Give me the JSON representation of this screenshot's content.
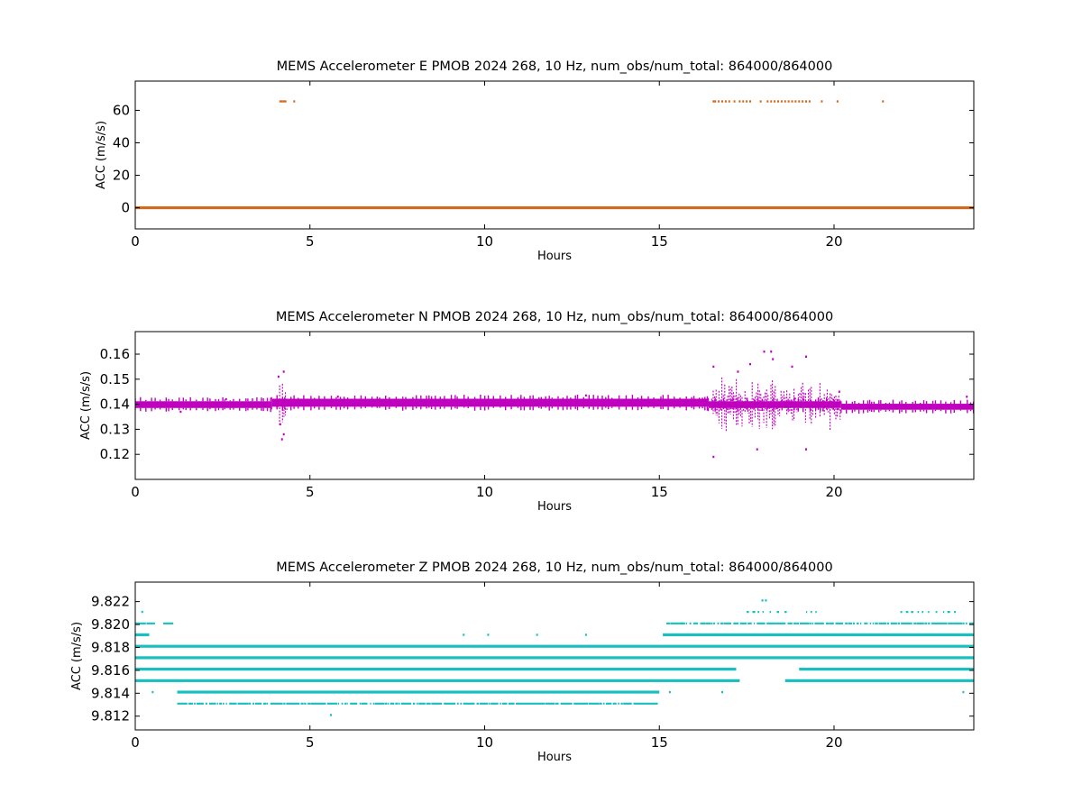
{
  "chart_data": [
    {
      "type": "scatter",
      "title": "MEMS Accelerometer E PMOB 2024 268, 10 Hz, num_obs/num_total: 864000/864000",
      "xlabel": "Hours",
      "ylabel": "ACC (m/s/s)",
      "xlim": [
        0,
        24
      ],
      "ylim": [
        -13,
        78
      ],
      "xticks": [
        0,
        5,
        10,
        15,
        20
      ],
      "yticks": [
        0,
        20,
        40,
        60
      ],
      "tick_decimals": 0,
      "color": "#d2691e",
      "grid": false,
      "series": [
        {
          "bands": [
            {
              "y": 0,
              "x_ranges": [
                [
                  0,
                  24
                ]
              ],
              "style": "solid"
            }
          ],
          "points": [
            {
              "x": 4.15,
              "y": 65.5
            },
            {
              "x": 4.2,
              "y": 65.5
            },
            {
              "x": 4.25,
              "y": 65.5
            },
            {
              "x": 4.3,
              "y": 65.5
            },
            {
              "x": 4.55,
              "y": 65.5
            },
            {
              "x": 16.55,
              "y": 65.5
            },
            {
              "x": 16.6,
              "y": 65.5
            },
            {
              "x": 16.7,
              "y": 65.5
            },
            {
              "x": 16.8,
              "y": 65.5
            },
            {
              "x": 16.9,
              "y": 65.5
            },
            {
              "x": 17.0,
              "y": 65.5
            },
            {
              "x": 17.15,
              "y": 65.5
            },
            {
              "x": 17.3,
              "y": 65.5
            },
            {
              "x": 17.4,
              "y": 65.5
            },
            {
              "x": 17.5,
              "y": 65.5
            },
            {
              "x": 17.6,
              "y": 65.5
            },
            {
              "x": 17.9,
              "y": 65.5
            },
            {
              "x": 18.1,
              "y": 65.5
            },
            {
              "x": 18.2,
              "y": 65.5
            },
            {
              "x": 18.3,
              "y": 65.5
            },
            {
              "x": 18.4,
              "y": 65.5
            },
            {
              "x": 18.5,
              "y": 65.5
            },
            {
              "x": 18.6,
              "y": 65.5
            },
            {
              "x": 18.7,
              "y": 65.5
            },
            {
              "x": 18.8,
              "y": 65.5
            },
            {
              "x": 18.9,
              "y": 65.5
            },
            {
              "x": 19.0,
              "y": 65.5
            },
            {
              "x": 19.1,
              "y": 65.5
            },
            {
              "x": 19.2,
              "y": 65.5
            },
            {
              "x": 19.3,
              "y": 65.5
            },
            {
              "x": 19.65,
              "y": 65.5
            },
            {
              "x": 20.1,
              "y": 65.5
            },
            {
              "x": 21.4,
              "y": 65.5
            }
          ]
        }
      ]
    },
    {
      "type": "scatter",
      "title": "MEMS Accelerometer N PMOB 2024 268, 10 Hz, num_obs/num_total: 864000/864000",
      "xlabel": "Hours",
      "ylabel": "ACC (m/s/s)",
      "xlim": [
        0,
        24
      ],
      "ylim": [
        0.11,
        0.169
      ],
      "xticks": [
        0,
        5,
        10,
        15,
        20
      ],
      "yticks": [
        0.12,
        0.13,
        0.14,
        0.15,
        0.16
      ],
      "tick_decimals": 2,
      "color": "#bf00bf",
      "grid": false,
      "series": [
        {
          "bands": [
            {
              "y_from": 0.1385,
              "y_to": 0.1412,
              "x_ranges": [
                [
                  0,
                  3.9
                ]
              ],
              "style": "solid"
            },
            {
              "y_from": 0.139,
              "y_to": 0.1422,
              "x_ranges": [
                [
                  3.9,
                  16.4
                ]
              ],
              "style": "solid"
            },
            {
              "y_from": 0.1385,
              "y_to": 0.1412,
              "x_ranges": [
                [
                  16.4,
                  20.2
                ]
              ],
              "style": "solid"
            },
            {
              "y_from": 0.1378,
              "y_to": 0.1402,
              "x_ranges": [
                [
                  20.2,
                  24
                ]
              ],
              "style": "solid"
            }
          ],
          "spread_regions": [
            {
              "x_from": 16.5,
              "x_to": 20.2,
              "y_from": 0.128,
              "y_to": 0.152
            },
            {
              "x_from": 4.05,
              "x_to": 4.35,
              "y_from": 0.13,
              "y_to": 0.15
            }
          ],
          "points": [
            {
              "x": 4.1,
              "y": 0.151
            },
            {
              "x": 4.25,
              "y": 0.153
            },
            {
              "x": 4.15,
              "y": 0.132
            },
            {
              "x": 4.25,
              "y": 0.128
            },
            {
              "x": 4.2,
              "y": 0.126
            },
            {
              "x": 16.55,
              "y": 0.119
            },
            {
              "x": 16.55,
              "y": 0.155
            },
            {
              "x": 17.25,
              "y": 0.153
            },
            {
              "x": 17.6,
              "y": 0.156
            },
            {
              "x": 17.8,
              "y": 0.122
            },
            {
              "x": 18.0,
              "y": 0.161
            },
            {
              "x": 18.2,
              "y": 0.161
            },
            {
              "x": 18.25,
              "y": 0.158
            },
            {
              "x": 18.8,
              "y": 0.155
            },
            {
              "x": 19.2,
              "y": 0.159
            },
            {
              "x": 19.2,
              "y": 0.122
            },
            {
              "x": 20.15,
              "y": 0.145
            },
            {
              "x": 1.3,
              "y": 0.137
            },
            {
              "x": 2.6,
              "y": 0.142
            },
            {
              "x": 5.8,
              "y": 0.143
            },
            {
              "x": 12.9,
              "y": 0.1435
            },
            {
              "x": 23.8,
              "y": 0.143
            }
          ]
        }
      ]
    },
    {
      "type": "scatter",
      "title": "MEMS Accelerometer Z PMOB 2024 268, 10 Hz, num_obs/num_total: 864000/864000",
      "xlabel": "Hours",
      "ylabel": "ACC (m/s/s)",
      "xlim": [
        0,
        24
      ],
      "ylim": [
        9.8108,
        9.8237
      ],
      "xticks": [
        0,
        5,
        10,
        15,
        20
      ],
      "yticks": [
        9.812,
        9.814,
        9.816,
        9.818,
        9.82,
        9.822
      ],
      "tick_decimals": 3,
      "color": "#17bfbf",
      "grid": false,
      "series": [
        {
          "bands": [
            {
              "y": 9.8211,
              "x_ranges": [
                [
                  17.5,
                  18.6
                ],
                [
                  19.2,
                  19.5
                ],
                [
                  21.9,
                  23.5
                ]
              ],
              "style": "sparse"
            },
            {
              "y": 9.8201,
              "x_ranges": [
                [
                  0,
                  0.5
                ],
                [
                  0.8,
                  1.0
                ],
                [
                  15.2,
                  15.6
                ],
                [
                  15.6,
                  24
                ]
              ],
              "style": "medium"
            },
            {
              "y": 9.8191,
              "x_ranges": [
                [
                  0,
                  0.4
                ],
                [
                  15.1,
                  24
                ]
              ],
              "style": "solid"
            },
            {
              "y": 9.8181,
              "x_ranges": [
                [
                  0,
                  24
                ]
              ],
              "style": "solid"
            },
            {
              "y": 9.8171,
              "x_ranges": [
                [
                  0,
                  24
                ]
              ],
              "style": "solid"
            },
            {
              "y": 9.8161,
              "x_ranges": [
                [
                  0,
                  17.2
                ],
                [
                  19.0,
                  24
                ]
              ],
              "style": "solid"
            },
            {
              "y": 9.8151,
              "x_ranges": [
                [
                  0,
                  17.3
                ],
                [
                  18.6,
                  24
                ]
              ],
              "style": "solid"
            },
            {
              "y": 9.8141,
              "x_ranges": [
                [
                  1.2,
                  15.0
                ]
              ],
              "style": "solid"
            },
            {
              "y": 9.8131,
              "x_ranges": [
                [
                  1.2,
                  14.9
                ]
              ],
              "style": "medium"
            }
          ],
          "points": [
            {
              "x": 0.2,
              "y": 9.8211
            },
            {
              "x": 5.6,
              "y": 9.8121
            },
            {
              "x": 17.95,
              "y": 9.8221
            },
            {
              "x": 18.05,
              "y": 9.8221
            },
            {
              "x": 9.4,
              "y": 9.8191
            },
            {
              "x": 10.1,
              "y": 9.8191
            },
            {
              "x": 11.5,
              "y": 9.8191
            },
            {
              "x": 12.9,
              "y": 9.8191
            },
            {
              "x": 0.5,
              "y": 9.8141
            },
            {
              "x": 16.8,
              "y": 9.8141
            },
            {
              "x": 23.7,
              "y": 9.8141
            },
            {
              "x": 15.3,
              "y": 9.8141
            }
          ]
        }
      ]
    }
  ]
}
